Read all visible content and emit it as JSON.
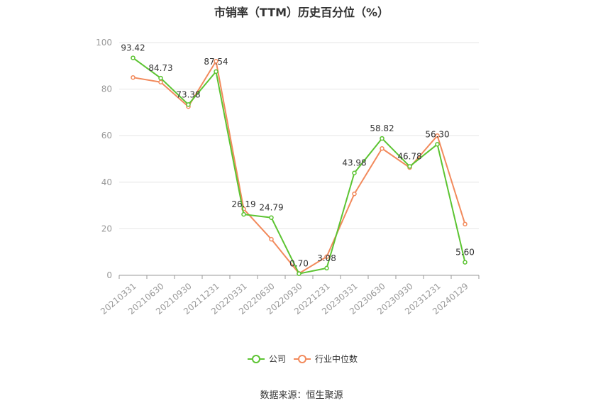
{
  "title": "市销率（TTM）历史百分位（%）",
  "source": "数据来源：恒生聚源",
  "colors": {
    "company": "#5cc432",
    "industry": "#f28a5c",
    "grid": "#e6e6e6",
    "axis": "#999999"
  },
  "chart_data": {
    "type": "line",
    "title": "市销率（TTM）历史百分位（%）",
    "x": [
      "20210331",
      "20210630",
      "20210930",
      "20211231",
      "20220331",
      "20220630",
      "20220930",
      "20221231",
      "20230331",
      "20230630",
      "20230930",
      "20231231",
      "20240129"
    ],
    "ylim": [
      0,
      100
    ],
    "yticks": [
      0,
      20,
      40,
      60,
      80,
      100
    ],
    "grid": true,
    "legend": "bottom-center",
    "series": [
      {
        "name": "公司",
        "values": [
          93.42,
          84.73,
          73.38,
          87.54,
          26.19,
          24.79,
          0.7,
          3.08,
          43.98,
          58.82,
          46.78,
          56.3,
          5.6
        ],
        "labels": [
          "93.42",
          "84.73",
          "73.38",
          "87.54",
          "26.19",
          "24.79",
          "0.70",
          "3.08",
          "43.98",
          "58.82",
          "46.78",
          "56.30",
          "5.60"
        ]
      },
      {
        "name": "行业中位数",
        "values": [
          85,
          83,
          72.5,
          92,
          28.5,
          15.5,
          0.8,
          8,
          35,
          54.5,
          46.3,
          60,
          22
        ]
      }
    ]
  }
}
